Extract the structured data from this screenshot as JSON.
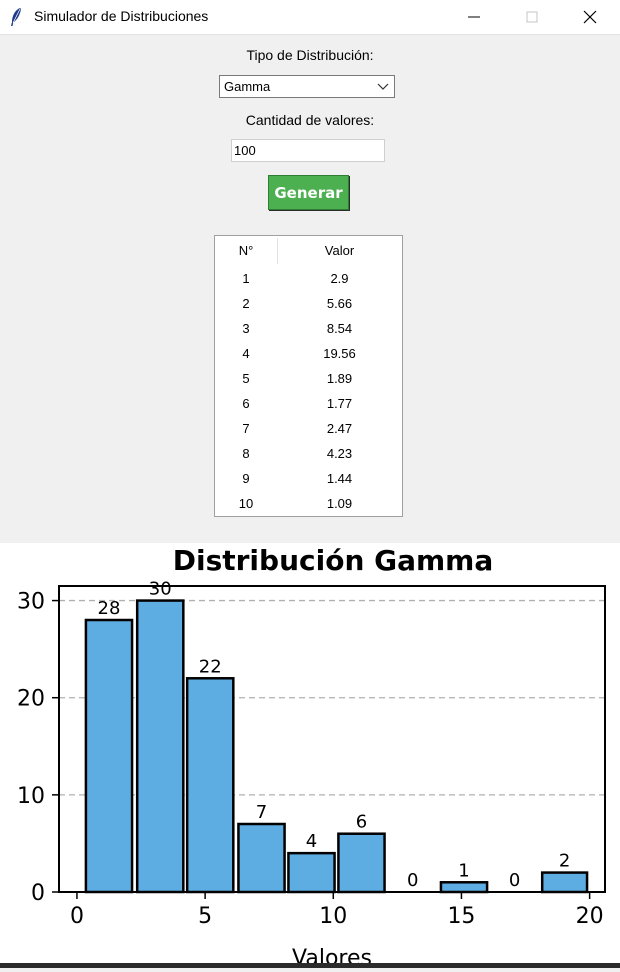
{
  "window": {
    "title": "Simulador de Distribuciones",
    "icon": "feather-icon"
  },
  "form": {
    "distribution_label": "Tipo de Distribución:",
    "distribution_value": "Gamma",
    "count_label": "Cantidad de valores:",
    "count_value": "100",
    "generate_button": "Generar"
  },
  "table": {
    "headers": [
      "N°",
      "Valor"
    ],
    "rows": [
      [
        "1",
        "2.9"
      ],
      [
        "2",
        "5.66"
      ],
      [
        "3",
        "8.54"
      ],
      [
        "4",
        "19.56"
      ],
      [
        "5",
        "1.89"
      ],
      [
        "6",
        "1.77"
      ],
      [
        "7",
        "2.47"
      ],
      [
        "8",
        "4.23"
      ],
      [
        "9",
        "1.44"
      ],
      [
        "10",
        "1.09"
      ]
    ]
  },
  "colors": {
    "bar_fill": "#5dade2",
    "button_green": "#4caf50"
  },
  "chart_data": {
    "type": "bar",
    "title": "Distribución Gamma",
    "xlabel": "Valores",
    "ylabel": "",
    "bins": [
      {
        "x0": 0.35,
        "x1": 2.15,
        "count": 28
      },
      {
        "x0": 2.35,
        "x1": 4.15,
        "count": 30
      },
      {
        "x0": 4.3,
        "x1": 6.1,
        "count": 22
      },
      {
        "x0": 6.3,
        "x1": 8.1,
        "count": 7
      },
      {
        "x0": 8.25,
        "x1": 10.05,
        "count": 4
      },
      {
        "x0": 10.2,
        "x1": 12.0,
        "count": 6
      },
      {
        "x0": 12.2,
        "x1": 14.0,
        "count": 0
      },
      {
        "x0": 14.2,
        "x1": 16.0,
        "count": 1
      },
      {
        "x0": 16.2,
        "x1": 17.95,
        "count": 0
      },
      {
        "x0": 18.15,
        "x1": 19.9,
        "count": 2
      }
    ],
    "xticks": [
      0,
      5,
      10,
      15,
      20
    ],
    "yticks": [
      0,
      10,
      20,
      30
    ],
    "xlim": [
      -0.7,
      20.6
    ],
    "ylim": [
      0,
      31.5
    ],
    "grid": "y-dashed"
  }
}
